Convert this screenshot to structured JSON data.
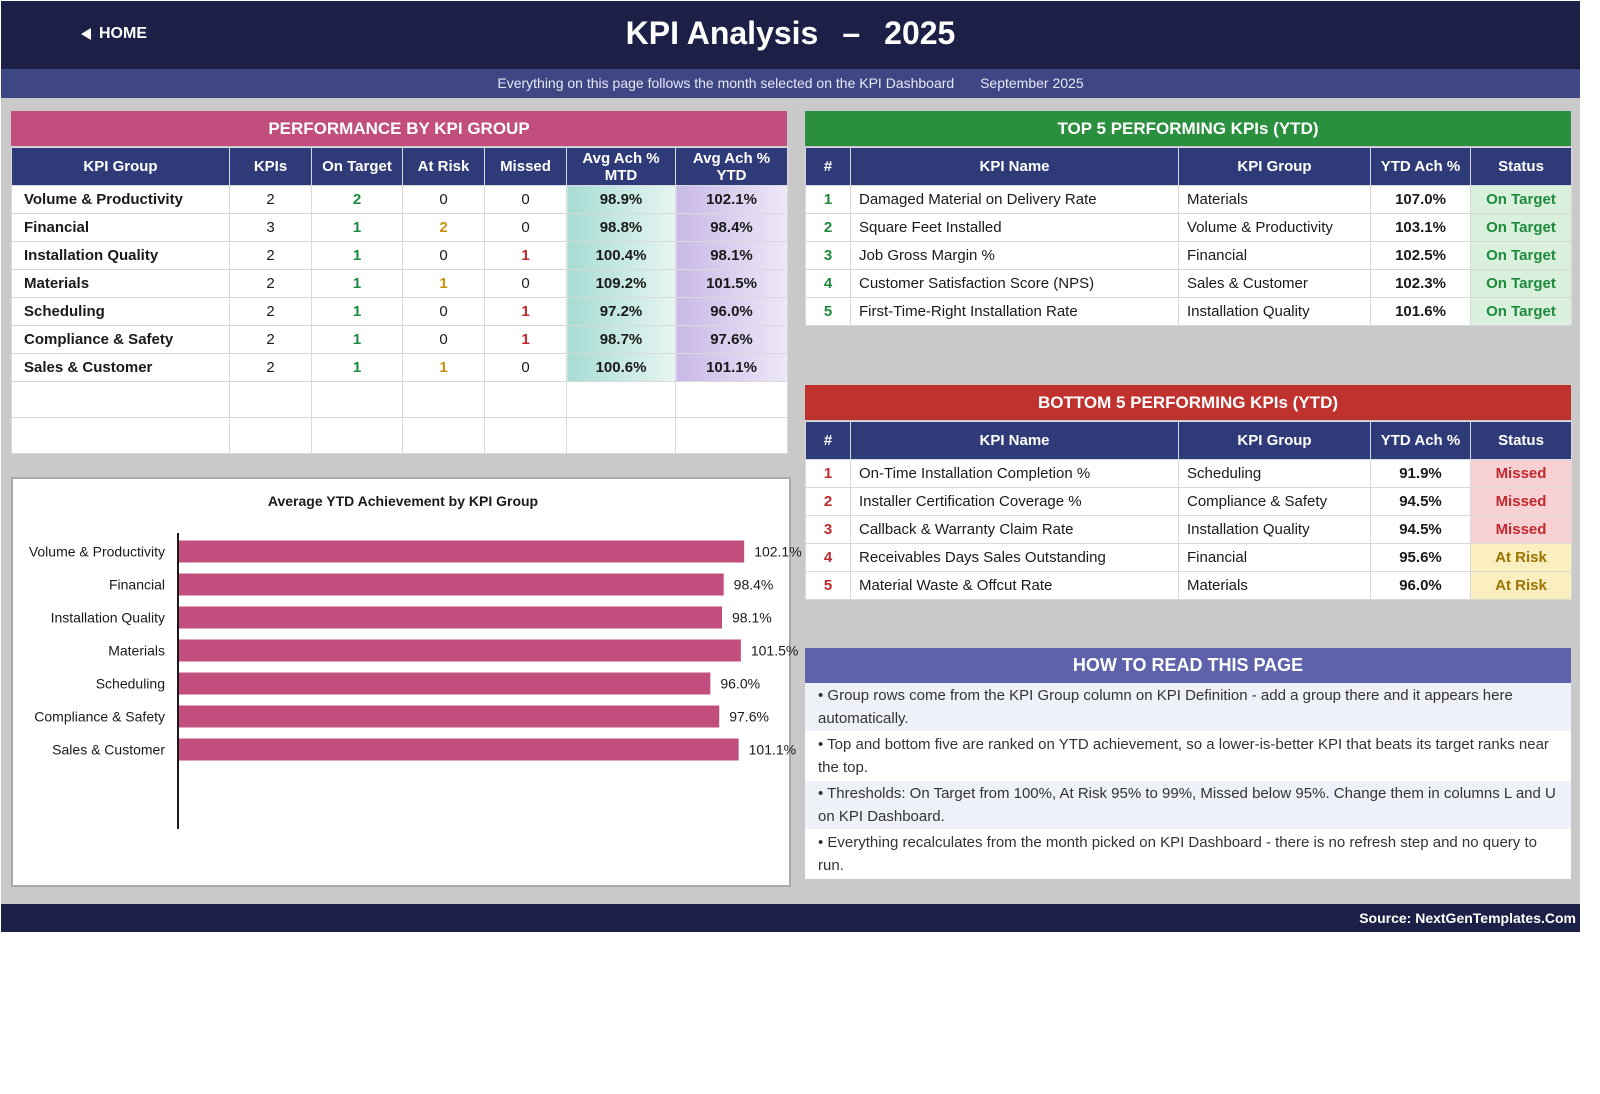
{
  "header": {
    "home_label": "HOME",
    "title": "KPI Analysis",
    "title_sep": "–",
    "year": "2025",
    "subtitle": "Everything on this page follows the month selected on the KPI Dashboard",
    "month": "September 2025"
  },
  "colors": {
    "navy": "#1c2046",
    "perf_header": "#c14e7d",
    "top_header": "#2a8f3e",
    "bottom_header": "#c0322e",
    "howto_header": "#5d62aa",
    "bar": "#c14e7d"
  },
  "performance": {
    "title": "PERFORMANCE BY KPI GROUP",
    "columns": [
      "KPI Group",
      "KPIs",
      "On Target",
      "At Risk",
      "Missed",
      "Avg Ach % MTD",
      "Avg Ach % YTD"
    ],
    "rows": [
      {
        "group": "Volume & Productivity",
        "kpis": "2",
        "on_target": "2",
        "at_risk": "0",
        "missed": "0",
        "mtd": "98.9%",
        "ytd": "102.1%"
      },
      {
        "group": "Financial",
        "kpis": "3",
        "on_target": "1",
        "at_risk": "2",
        "missed": "0",
        "mtd": "98.8%",
        "ytd": "98.4%"
      },
      {
        "group": "Installation Quality",
        "kpis": "2",
        "on_target": "1",
        "at_risk": "0",
        "missed": "1",
        "mtd": "100.4%",
        "ytd": "98.1%"
      },
      {
        "group": "Materials",
        "kpis": "2",
        "on_target": "1",
        "at_risk": "1",
        "missed": "0",
        "mtd": "109.2%",
        "ytd": "101.5%"
      },
      {
        "group": "Scheduling",
        "kpis": "2",
        "on_target": "1",
        "at_risk": "0",
        "missed": "1",
        "mtd": "97.2%",
        "ytd": "96.0%"
      },
      {
        "group": "Compliance & Safety",
        "kpis": "2",
        "on_target": "1",
        "at_risk": "0",
        "missed": "1",
        "mtd": "98.7%",
        "ytd": "97.6%"
      },
      {
        "group": "Sales & Customer",
        "kpis": "2",
        "on_target": "1",
        "at_risk": "1",
        "missed": "0",
        "mtd": "100.6%",
        "ytd": "101.1%"
      }
    ]
  },
  "top5": {
    "title": "TOP 5 PERFORMING KPIs  (YTD)",
    "columns": [
      "#",
      "KPI Name",
      "KPI Group",
      "YTD Ach %",
      "Status"
    ],
    "rows": [
      {
        "rank": "1",
        "name": "Damaged Material on Delivery Rate",
        "group": "Materials",
        "ytd": "107.0%",
        "status": "On Target"
      },
      {
        "rank": "2",
        "name": "Square Feet Installed",
        "group": "Volume & Productivity",
        "ytd": "103.1%",
        "status": "On Target"
      },
      {
        "rank": "3",
        "name": "Job Gross Margin %",
        "group": "Financial",
        "ytd": "102.5%",
        "status": "On Target"
      },
      {
        "rank": "4",
        "name": "Customer Satisfaction Score (NPS)",
        "group": "Sales & Customer",
        "ytd": "102.3%",
        "status": "On Target"
      },
      {
        "rank": "5",
        "name": "First-Time-Right Installation Rate",
        "group": "Installation Quality",
        "ytd": "101.6%",
        "status": "On Target"
      }
    ]
  },
  "bottom5": {
    "title": "BOTTOM 5 PERFORMING KPIs  (YTD)",
    "columns": [
      "#",
      "KPI Name",
      "KPI Group",
      "YTD Ach %",
      "Status"
    ],
    "rows": [
      {
        "rank": "1",
        "name": "On-Time Installation Completion %",
        "group": "Scheduling",
        "ytd": "91.9%",
        "status": "Missed"
      },
      {
        "rank": "2",
        "name": "Installer Certification Coverage %",
        "group": "Compliance & Safety",
        "ytd": "94.5%",
        "status": "Missed"
      },
      {
        "rank": "3",
        "name": "Callback & Warranty Claim Rate",
        "group": "Installation Quality",
        "ytd": "94.5%",
        "status": "Missed"
      },
      {
        "rank": "4",
        "name": "Receivables Days Sales Outstanding",
        "group": "Financial",
        "ytd": "95.6%",
        "status": "At Risk"
      },
      {
        "rank": "5",
        "name": "Material Waste & Offcut Rate",
        "group": "Materials",
        "ytd": "96.0%",
        "status": "At Risk"
      }
    ]
  },
  "howto": {
    "title": "HOW TO READ THIS PAGE",
    "items": [
      "•  Group rows come from the KPI Group column on KPI Definition - add a group there and it appears here automatically.",
      "•  Top and bottom five are ranked on YTD achievement, so a lower-is-better KPI that beats its target ranks near the top.",
      "•  Thresholds: On Target from 100%, At Risk 95% to 99%, Missed below 95%. Change them in columns L and U on KPI Dashboard.",
      "•  Everything recalculates from the month picked on KPI Dashboard - there is no refresh step and no query to run."
    ]
  },
  "footer": {
    "source": "Source: NextGenTemplates.Com"
  },
  "chart_data": {
    "type": "bar",
    "orientation": "horizontal",
    "title": "Average YTD Achievement by KPI Group",
    "categories": [
      "Volume & Productivity",
      "Financial",
      "Installation Quality",
      "Materials",
      "Scheduling",
      "Compliance & Safety",
      "Sales & Customer"
    ],
    "values": [
      102.1,
      98.4,
      98.1,
      101.5,
      96.0,
      97.6,
      101.1
    ],
    "data_labels": [
      "102.1%",
      "98.4%",
      "98.1%",
      "101.5%",
      "96.0%",
      "97.6%",
      "101.1%"
    ],
    "xlim": [
      0,
      110
    ],
    "grid": false,
    "legend": "none"
  }
}
